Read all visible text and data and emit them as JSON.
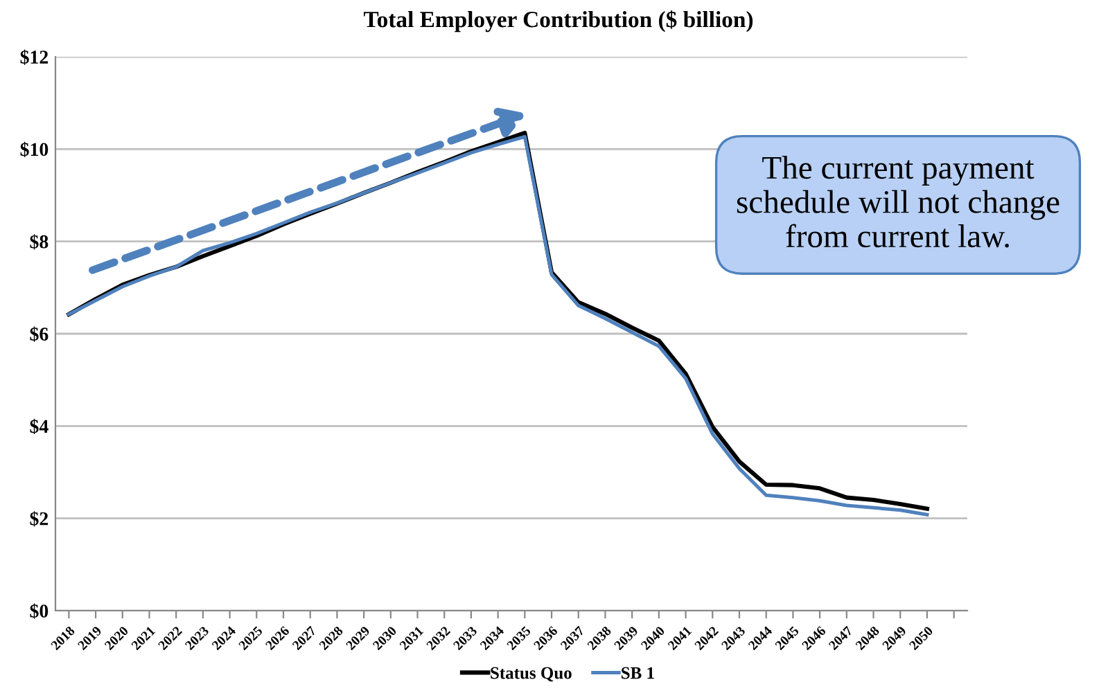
{
  "chart_data": {
    "type": "line",
    "title": "Total Employer Contribution ($ billion)",
    "categories": [
      "2018",
      "2019",
      "2020",
      "2021",
      "2022",
      "2023",
      "2024",
      "2025",
      "2026",
      "2027",
      "2028",
      "2029",
      "2030",
      "2031",
      "2032",
      "2033",
      "2034",
      "2035",
      "2036",
      "2037",
      "2038",
      "2039",
      "2040",
      "2041",
      "2042",
      "2043",
      "2044",
      "2045",
      "2046",
      "2047",
      "2048",
      "2049",
      "2050",
      null
    ],
    "series": [
      {
        "name": "Status Quo",
        "color": "#000000",
        "values": [
          6.42,
          6.75,
          7.06,
          7.27,
          7.45,
          7.68,
          7.9,
          8.12,
          8.37,
          8.6,
          8.82,
          9.05,
          9.27,
          9.5,
          9.72,
          9.95,
          10.15,
          10.35,
          7.33,
          6.68,
          6.43,
          6.13,
          5.85,
          5.13,
          3.98,
          3.23,
          2.73,
          2.72,
          2.65,
          2.45,
          2.4,
          2.31,
          2.21,
          null
        ]
      },
      {
        "name": "SB 1",
        "color": "#4f81bd",
        "values": [
          6.42,
          6.72,
          7.02,
          7.25,
          7.45,
          7.8,
          7.97,
          8.17,
          8.4,
          8.63,
          8.83,
          9.05,
          9.27,
          9.48,
          9.7,
          9.92,
          10.1,
          10.27,
          7.28,
          6.61,
          6.33,
          6.03,
          5.73,
          5.03,
          3.83,
          3.08,
          2.5,
          2.45,
          2.38,
          2.28,
          2.23,
          2.18,
          2.08,
          null
        ]
      }
    ],
    "ylim": [
      0,
      12
    ],
    "yticks": [
      {
        "value": 0,
        "label": "$0"
      },
      {
        "value": 2,
        "label": "$2"
      },
      {
        "value": 4,
        "label": "$4"
      },
      {
        "value": 6,
        "label": "$6"
      },
      {
        "value": 8,
        "label": "$8"
      },
      {
        "value": 10,
        "label": "$10"
      },
      {
        "value": 12,
        "label": "$12"
      }
    ],
    "grid": "y",
    "legend": "bottom",
    "marker": "none",
    "line_style": "solid",
    "annotations": [
      "The current payment\nschedule will not change\nfrom current law."
    ]
  }
}
